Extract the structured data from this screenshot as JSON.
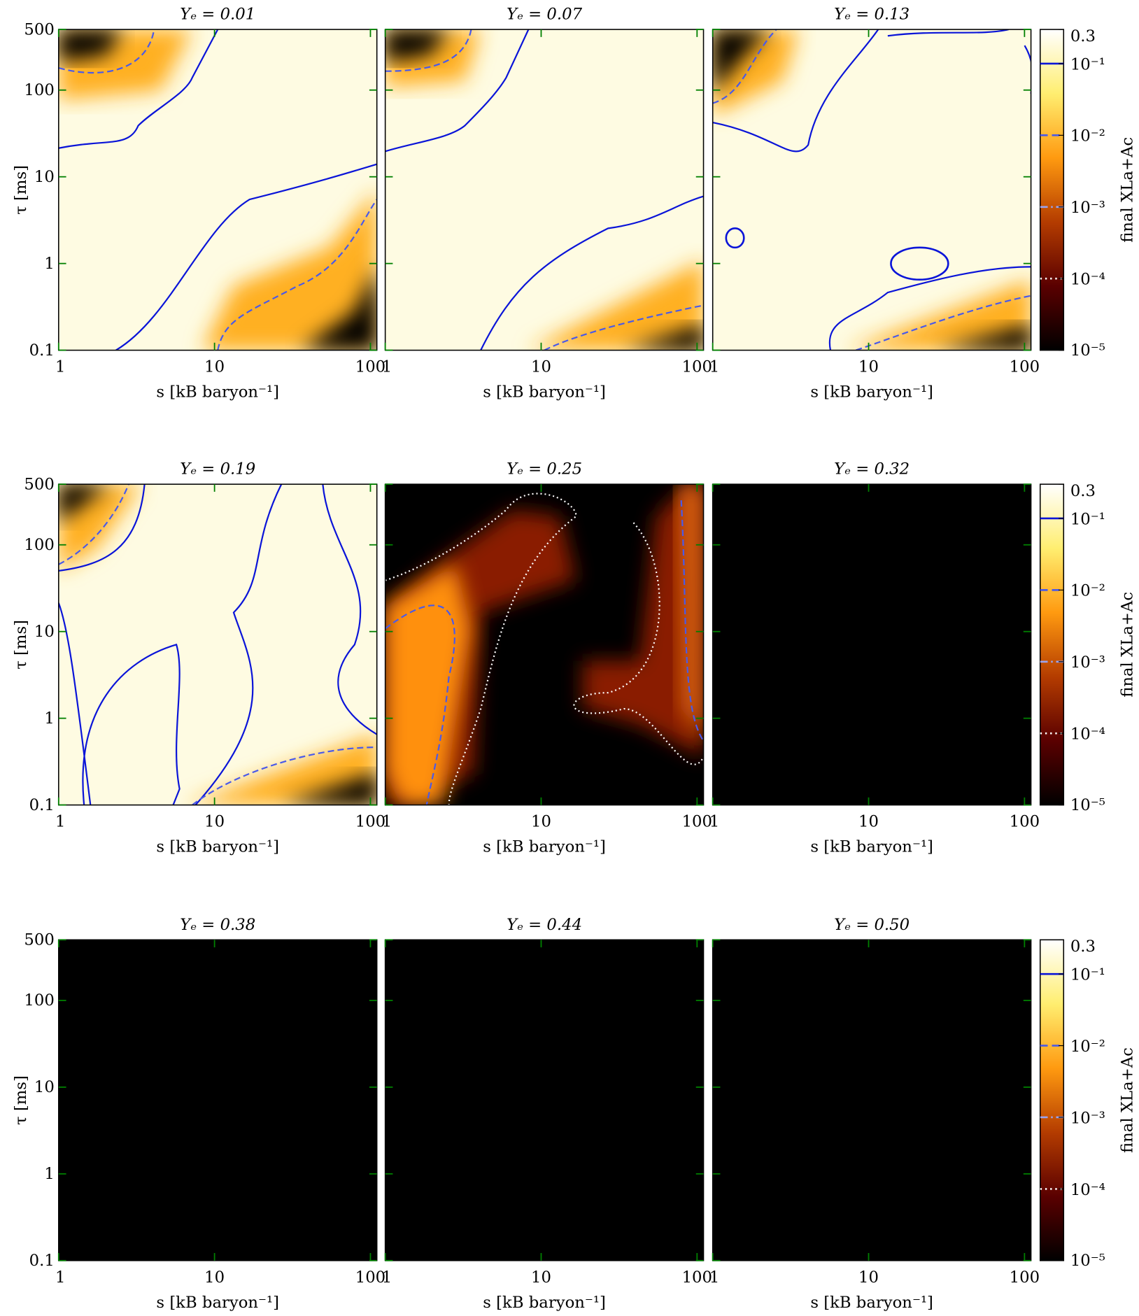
{
  "chart_data": {
    "type": "heatmap",
    "panels": [
      {
        "title": "Yₑ = 0.01"
      },
      {
        "title": "Yₑ = 0.07"
      },
      {
        "title": "Yₑ = 0.13"
      },
      {
        "title": "Yₑ = 0.19"
      },
      {
        "title": "Yₑ = 0.25"
      },
      {
        "title": "Yₑ = 0.32"
      },
      {
        "title": "Yₑ = 0.38"
      },
      {
        "title": "Yₑ = 0.44"
      },
      {
        "title": "Yₑ = 0.50"
      }
    ],
    "xlabel": "s [kB baryon⁻¹]",
    "ylabel": "τ [ms]",
    "xlim": [
      1,
      110
    ],
    "xticks": [
      1,
      10,
      100
    ],
    "ylim": [
      0.1,
      500
    ],
    "yticks": [
      0.1,
      1,
      10,
      100,
      500
    ],
    "log_scale": true,
    "tick_color": "#008000",
    "clabel": "final XLa+Ac",
    "clim": [
      1e-05,
      0.3
    ],
    "cticks": [
      0.3,
      {
        "value": 0.1,
        "label": "10⁻¹"
      },
      {
        "value": 0.01,
        "label": "10⁻²"
      },
      {
        "value": 0.001,
        "label": "10⁻³"
      },
      {
        "value": 0.0001,
        "label": "10⁻⁴"
      },
      {
        "value": 1e-05,
        "label": "10⁻⁵"
      }
    ],
    "colormap": [
      "#000000",
      "#5a0000",
      "#b43c00",
      "#ff9a10",
      "#ffee70",
      "#ffffff"
    ],
    "contour_levels": [
      {
        "value": 0.1,
        "style": "solid",
        "color": "#0a14d8"
      },
      {
        "value": 0.01,
        "style": "dashed",
        "color": "#4a5ae8"
      },
      {
        "value": 0.001,
        "style": "dashdot",
        "color": "#9aa4f0"
      },
      {
        "value": 0.0001,
        "style": "dotted",
        "color": "#ffffff"
      }
    ]
  }
}
